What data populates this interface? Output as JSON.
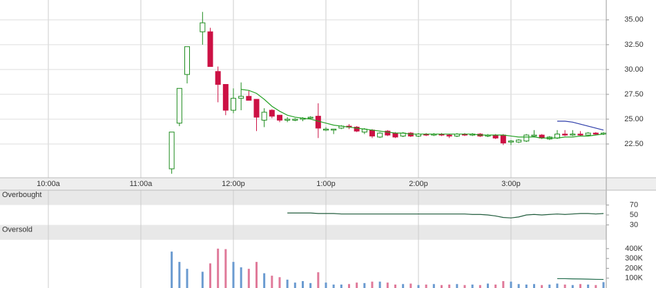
{
  "chart_data": [
    {
      "type": "candlestick",
      "x": [
        680,
        685,
        690,
        700,
        705,
        710,
        715,
        720,
        725,
        730,
        735,
        740,
        745,
        750,
        755,
        760,
        765,
        770,
        775,
        780,
        785,
        790,
        795,
        800,
        805,
        810,
        815,
        820,
        825,
        830,
        835,
        840,
        845,
        850,
        855,
        860,
        865,
        870,
        875,
        880,
        885,
        890,
        895,
        900,
        905,
        910,
        915,
        920,
        925,
        930,
        935,
        940,
        945,
        950,
        955,
        960
      ],
      "open": [
        20.0,
        24.6,
        29.5,
        33.8,
        33.8,
        29.8,
        28.5,
        25.9,
        27.1,
        27.3,
        27.0,
        24.9,
        25.9,
        25.4,
        24.9,
        24.9,
        25.0,
        25.1,
        25.3,
        23.9,
        23.9,
        24.1,
        24.3,
        24.2,
        23.7,
        23.9,
        23.2,
        23.8,
        23.6,
        23.3,
        23.6,
        23.3,
        23.5,
        23.4,
        23.5,
        23.4,
        23.3,
        23.5,
        23.4,
        23.5,
        23.3,
        23.4,
        23.4,
        22.7,
        22.7,
        22.8,
        23.3,
        23.4,
        23.0,
        23.1,
        23.5,
        23.4,
        23.5,
        23.4,
        23.6,
        23.5
      ],
      "high": [
        23.7,
        28.1,
        32.3,
        35.8,
        34.2,
        30.3,
        28.5,
        28.1,
        28.7,
        27.9,
        27.0,
        26.1,
        26.0,
        25.4,
        25.2,
        25.1,
        25.2,
        25.3,
        26.6,
        24.2,
        24.0,
        24.4,
        24.5,
        24.3,
        24.1,
        24.0,
        23.7,
        23.9,
        23.7,
        23.7,
        23.7,
        23.6,
        23.6,
        23.6,
        23.6,
        23.5,
        23.6,
        23.6,
        23.6,
        23.6,
        23.5,
        23.5,
        23.5,
        22.9,
        23.0,
        23.5,
        23.9,
        23.5,
        23.3,
        23.9,
        23.9,
        23.9,
        23.8,
        23.7,
        23.7,
        23.7
      ],
      "low": [
        19.5,
        24.3,
        28.6,
        32.5,
        30.3,
        26.7,
        25.4,
        25.6,
        25.9,
        26.9,
        23.8,
        24.2,
        25.1,
        24.7,
        24.7,
        24.8,
        24.8,
        25.0,
        23.1,
        23.8,
        23.5,
        24.0,
        24.0,
        23.7,
        23.5,
        23.1,
        23.1,
        23.3,
        23.1,
        23.2,
        23.2,
        23.2,
        23.3,
        23.3,
        23.3,
        23.1,
        23.2,
        23.3,
        23.3,
        23.2,
        23.2,
        23.0,
        22.4,
        22.4,
        22.6,
        22.7,
        23.2,
        23.0,
        22.9,
        23.0,
        23.3,
        23.3,
        23.3,
        23.3,
        23.4,
        23.4
      ],
      "close": [
        23.7,
        28.1,
        32.3,
        34.7,
        30.3,
        28.5,
        25.9,
        27.1,
        27.3,
        26.9,
        25.2,
        25.7,
        25.3,
        24.9,
        25.0,
        25.0,
        25.1,
        25.2,
        24.1,
        24.0,
        24.0,
        24.3,
        24.2,
        23.8,
        24.0,
        23.3,
        23.6,
        23.4,
        23.2,
        23.6,
        23.3,
        23.5,
        23.4,
        23.5,
        23.4,
        23.3,
        23.5,
        23.4,
        23.5,
        23.3,
        23.4,
        23.1,
        22.6,
        22.8,
        22.9,
        23.4,
        23.4,
        23.1,
        23.2,
        23.5,
        23.4,
        23.5,
        23.4,
        23.6,
        23.5,
        23.6
      ],
      "up_color": "#1a8a1a",
      "down_color": "#cc1144",
      "overlays": [
        {
          "color": "#22a022",
          "x": [
            725,
            730,
            735,
            740,
            745,
            750,
            755,
            760,
            765,
            770,
            775,
            780,
            785,
            790,
            795,
            800,
            805,
            810,
            815,
            820,
            825,
            830,
            835,
            840,
            845,
            850,
            855,
            860,
            865,
            870,
            875,
            880,
            885,
            890,
            895,
            900,
            905,
            910,
            915,
            920,
            925,
            930,
            935,
            940,
            945,
            950,
            955,
            960
          ],
          "values": [
            28.0,
            27.9,
            27.6,
            27.0,
            26.3,
            25.8,
            25.4,
            25.2,
            25.1,
            25.0,
            24.8,
            24.6,
            24.4,
            24.3,
            24.2,
            24.1,
            24.0,
            23.9,
            23.8,
            23.7,
            23.6,
            23.6,
            23.5,
            23.5,
            23.5,
            23.5,
            23.5,
            23.5,
            23.5,
            23.5,
            23.5,
            23.4,
            23.4,
            23.4,
            23.4,
            23.3,
            23.2,
            23.2,
            23.2,
            23.1,
            23.1,
            23.1,
            23.2,
            23.2,
            23.3,
            23.3,
            23.4,
            23.5
          ]
        },
        {
          "color": "#2a3aa8",
          "x": [
            930,
            935,
            940,
            945,
            950,
            955,
            960
          ],
          "values": [
            24.8,
            24.8,
            24.7,
            24.5,
            24.3,
            24.1,
            23.9
          ]
        }
      ],
      "xlim": [
        568.66,
        961.8
      ],
      "xticks": [
        {
          "value": 600,
          "label": "10:00a"
        },
        {
          "value": 660,
          "label": "11:00a"
        },
        {
          "value": 720,
          "label": "12:00p"
        },
        {
          "value": 780,
          "label": "1:00p"
        },
        {
          "value": 840,
          "label": "2:00p"
        },
        {
          "value": 900,
          "label": "3:00p"
        }
      ],
      "ylim": [
        19.1,
        37.0
      ],
      "yticks": [
        {
          "value": 22.5,
          "label": "22.50"
        },
        {
          "value": 25,
          "label": "25.00"
        },
        {
          "value": 27.5,
          "label": "27.50"
        },
        {
          "value": 30,
          "label": "30.00"
        },
        {
          "value": 32.5,
          "label": "32.50"
        },
        {
          "value": 35,
          "label": "35.00"
        }
      ],
      "grid": true
    },
    {
      "type": "line",
      "x": [
        755,
        760,
        765,
        770,
        775,
        780,
        785,
        790,
        795,
        800,
        805,
        810,
        815,
        820,
        825,
        830,
        835,
        840,
        845,
        850,
        855,
        860,
        865,
        870,
        875,
        880,
        885,
        890,
        895,
        900,
        905,
        910,
        915,
        920,
        925,
        930,
        935,
        940,
        945,
        950,
        955,
        960
      ],
      "values": [
        54,
        54,
        54,
        54,
        53,
        53,
        53,
        52,
        52,
        52,
        52,
        52,
        52,
        52,
        52,
        52,
        52,
        52,
        52,
        52,
        52,
        52,
        52,
        52,
        51,
        51,
        50,
        48,
        45,
        44,
        46,
        50,
        51,
        50,
        51,
        52,
        51,
        52,
        53,
        53,
        52,
        53
      ],
      "color": "#1e5a3a",
      "bands": [
        {
          "label": "Overbought",
          "range": [
            70,
            100
          ]
        },
        {
          "label": "Oversold",
          "range": [
            0,
            30
          ]
        }
      ],
      "xlim": [
        568.66,
        961.8
      ],
      "ylim": [
        0,
        100
      ],
      "yticks": [
        30,
        50,
        70
      ]
    },
    {
      "type": "bar",
      "x": [
        680,
        685,
        690,
        700,
        705,
        710,
        715,
        720,
        725,
        730,
        735,
        740,
        745,
        750,
        755,
        760,
        765,
        770,
        775,
        780,
        785,
        790,
        795,
        800,
        805,
        810,
        815,
        820,
        825,
        830,
        835,
        840,
        845,
        850,
        855,
        860,
        865,
        870,
        875,
        880,
        885,
        890,
        895,
        900,
        905,
        910,
        915,
        920,
        925,
        930,
        935,
        940,
        945,
        950,
        955,
        960
      ],
      "values": [
        370000,
        265000,
        195000,
        165000,
        250000,
        400000,
        395000,
        265000,
        210000,
        195000,
        265000,
        150000,
        125000,
        110000,
        85000,
        55000,
        70000,
        50000,
        160000,
        55000,
        35000,
        35000,
        40000,
        55000,
        50000,
        65000,
        65000,
        55000,
        35000,
        40000,
        45000,
        30000,
        35000,
        40000,
        30000,
        35000,
        40000,
        30000,
        35000,
        30000,
        45000,
        35000,
        70000,
        65000,
        40000,
        35000,
        40000,
        30000,
        35000,
        45000,
        35000,
        30000,
        40000,
        35000,
        30000,
        60000
      ],
      "up_color": "#6a9ad0",
      "down_color": "#e07a9a",
      "overlays": [
        {
          "color": "#1e6a4a",
          "x": [
            930,
            935,
            940,
            945,
            950,
            955,
            960
          ],
          "values": [
            95000,
            95000,
            93000,
            92000,
            90000,
            88000,
            87000
          ]
        }
      ],
      "xlim": [
        568.66,
        961.8
      ],
      "ylim": [
        0,
        490000
      ],
      "yticks": [
        {
          "value": 100000,
          "label": "100K"
        },
        {
          "value": 200000,
          "label": "200K"
        },
        {
          "value": 300000,
          "label": "300K"
        },
        {
          "value": 400000,
          "label": "400K"
        }
      ]
    }
  ]
}
